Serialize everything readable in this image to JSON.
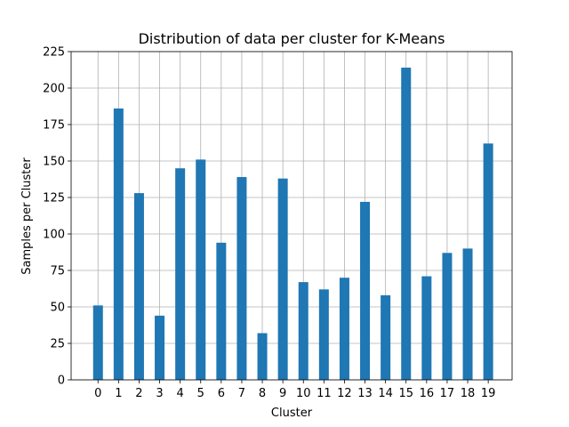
{
  "chart_data": {
    "type": "bar",
    "title": "Distribution of data per cluster for K-Means",
    "xlabel": "Cluster",
    "ylabel": "Samples per Cluster",
    "categories": [
      "0",
      "1",
      "2",
      "3",
      "4",
      "5",
      "6",
      "7",
      "8",
      "9",
      "10",
      "11",
      "12",
      "13",
      "14",
      "15",
      "16",
      "17",
      "18",
      "19"
    ],
    "values": [
      51,
      186,
      128,
      44,
      145,
      151,
      94,
      139,
      32,
      138,
      67,
      62,
      70,
      122,
      58,
      214,
      71,
      87,
      90,
      162
    ],
    "ylim": [
      0,
      225
    ],
    "yticks": [
      "0",
      "25",
      "50",
      "75",
      "100",
      "125",
      "150",
      "175",
      "200",
      "225"
    ],
    "grid": true,
    "colors": {
      "bar": "#1f77b4",
      "grid": "#b0b0b0",
      "axis": "#000000"
    }
  }
}
